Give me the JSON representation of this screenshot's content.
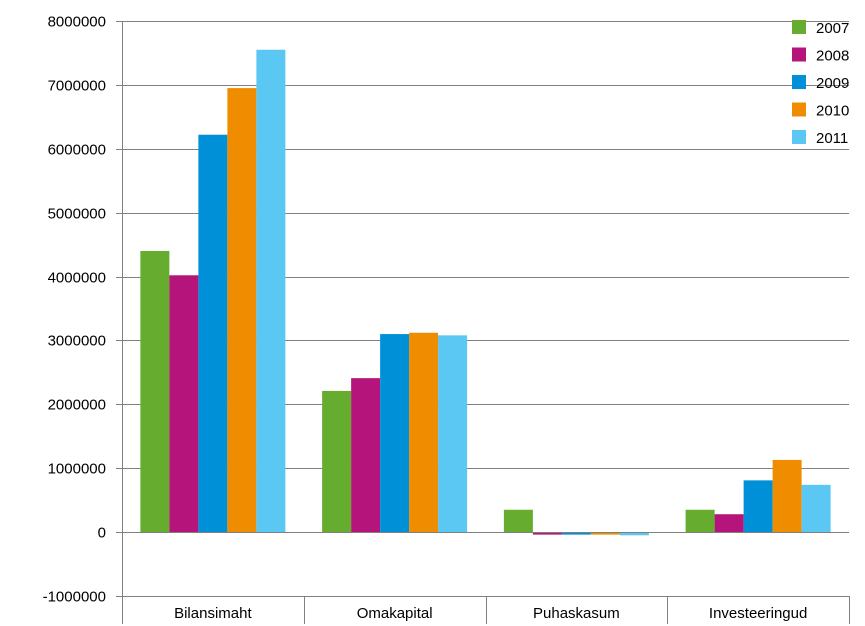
{
  "chart_data": {
    "type": "bar",
    "title": "",
    "xlabel": "",
    "ylabel": "",
    "ylim": [
      -1000000,
      8000000
    ],
    "yticks": [
      8000000,
      7000000,
      6000000,
      5000000,
      4000000,
      3000000,
      2000000,
      1000000,
      0,
      -1000000
    ],
    "ytick_labels": [
      "8000000",
      "7000000",
      "6000000",
      "5000000",
      "4000000",
      "3000000",
      "2000000",
      "1000000",
      "0",
      "-1000000"
    ],
    "grid": true,
    "legend_position": "top-right",
    "categories": [
      "Bilansimaht",
      "Omakapital",
      "Puhaskasum",
      "Investeeringud"
    ],
    "series": [
      {
        "name": "2007",
        "color": "#65ac2f",
        "values": [
          4400000,
          2210000,
          350000,
          350000
        ]
      },
      {
        "name": "2008",
        "color": "#b5157a",
        "values": [
          4020000,
          2410000,
          -30000,
          280000
        ]
      },
      {
        "name": "2009",
        "color": "#0090d8",
        "values": [
          6220000,
          3100000,
          -30000,
          810000
        ]
      },
      {
        "name": "2010",
        "color": "#f08c00",
        "values": [
          6950000,
          3120000,
          -20000,
          1130000
        ]
      },
      {
        "name": "2011",
        "color": "#5bc7f3",
        "values": [
          7550000,
          3080000,
          -50000,
          740000
        ]
      }
    ]
  }
}
